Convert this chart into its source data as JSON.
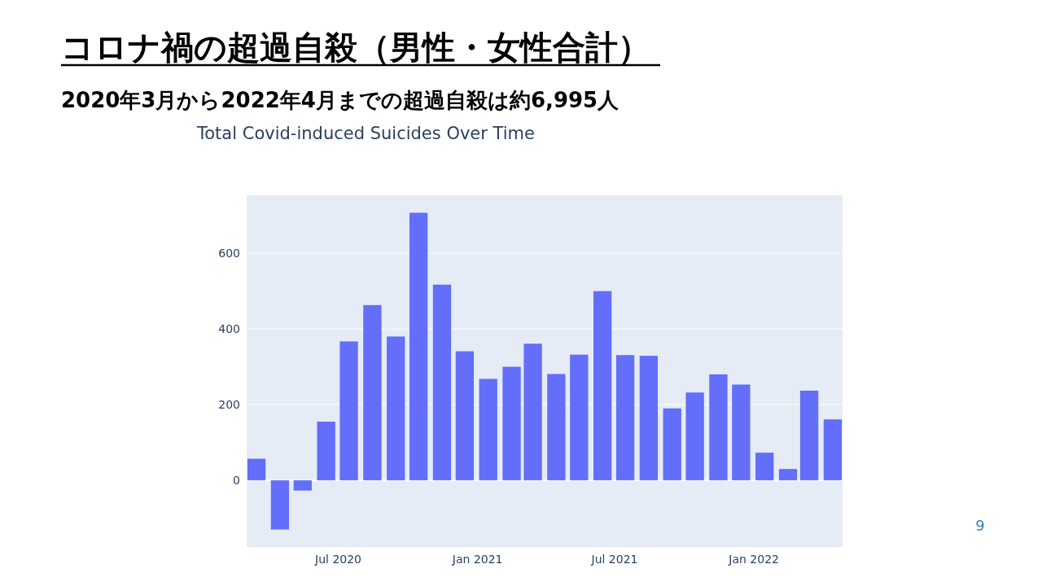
{
  "chart_data": {
    "type": "bar",
    "title": "コロナ禍の超過自殺（男性・女性合計）",
    "subtitle": "2020年3月から2022年4月までの超過自殺は約6,995人",
    "annotations": [
      "Total Covid-induced Suicides Over Time",
      "9"
    ],
    "x": [
      "2020-03-15",
      "2020-04-15",
      "2020-05-15",
      "2020-06-15",
      "2020-07-15",
      "2020-08-15",
      "2020-09-15",
      "2020-10-15",
      "2020-11-15",
      "2020-12-15",
      "2021-01-15",
      "2021-02-15",
      "2021-03-15",
      "2021-04-15",
      "2021-05-15",
      "2021-06-15",
      "2021-07-15",
      "2021-08-15",
      "2021-09-15",
      "2021-10-15",
      "2021-11-15",
      "2021-12-15",
      "2022-01-15",
      "2022-02-15",
      "2022-03-15",
      "2022-04-15"
    ],
    "values": [
      57,
      -130,
      -27,
      155,
      367,
      463,
      380,
      707,
      517,
      341,
      268,
      300,
      361,
      281,
      332,
      500,
      331,
      329,
      190,
      232,
      280,
      253,
      73,
      30,
      237,
      161
    ],
    "color": "#636efa",
    "xlim": [
      "2020-03-02",
      "2022-04-28"
    ],
    "xticks": [
      {
        "value": "2020-07-01",
        "label": "Jul 2020"
      },
      {
        "value": "2021-01-01",
        "label": "Jan 2021"
      },
      {
        "value": "2021-07-01",
        "label": "Jul 2021"
      },
      {
        "value": "2022-01-01",
        "label": "Jan 2022"
      }
    ],
    "ylim": [
      -176,
      753
    ],
    "yticks": [
      0,
      200,
      400,
      600
    ],
    "grid": "y"
  }
}
